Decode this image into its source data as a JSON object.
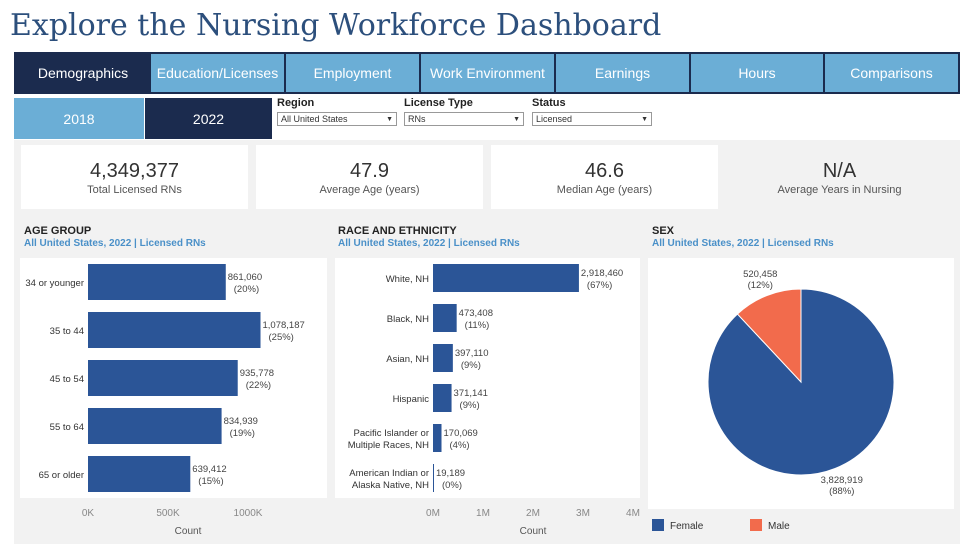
{
  "page": {
    "title": "Explore the Nursing Workforce Dashboard"
  },
  "tabs": [
    {
      "label": "Demographics",
      "active": true
    },
    {
      "label": "Education/Licenses",
      "active": false
    },
    {
      "label": "Employment",
      "active": false
    },
    {
      "label": "Work Environment",
      "active": false
    },
    {
      "label": "Earnings",
      "active": false
    },
    {
      "label": "Hours",
      "active": false
    },
    {
      "label": "Comparisons",
      "active": false
    }
  ],
  "years": [
    {
      "label": "2018",
      "active": false
    },
    {
      "label": "2022",
      "active": true
    }
  ],
  "filters": {
    "region": {
      "label": "Region",
      "value": "All United States"
    },
    "license_type": {
      "label": "License Type",
      "value": "RNs"
    },
    "status": {
      "label": "Status",
      "value": "Licensed"
    }
  },
  "kpis": [
    {
      "value": "4,349,377",
      "label": "Total Licensed RNs"
    },
    {
      "value": "47.9",
      "label": "Average Age (years)"
    },
    {
      "value": "46.6",
      "label": "Median Age (years)"
    },
    {
      "value": "N/A",
      "label": "Average Years in Nursing"
    }
  ],
  "sections": {
    "age": {
      "title": "AGE GROUP",
      "subtitle": "All United States, 2022 | Licensed RNs"
    },
    "race": {
      "title": "RACE AND ETHNICITY",
      "subtitle": "All United States, 2022 | Licensed RNs"
    },
    "sex": {
      "title": "SEX",
      "subtitle": "All United States, 2022 | Licensed RNs"
    }
  },
  "colors": {
    "bar": "#2b5597",
    "female": "#2b5597",
    "male": "#f26b4c",
    "tab_active": "#1b2b4e",
    "tab_inactive": "#6baed6",
    "subtitle": "#4a90c8"
  },
  "chart_data": [
    {
      "type": "bar",
      "orientation": "horizontal",
      "title": "AGE GROUP",
      "subtitle": "All United States, 2022 | Licensed RNs",
      "categories": [
        "34 or younger",
        "35 to 44",
        "45 to 54",
        "55 to 64",
        "65 or older"
      ],
      "values": [
        861060,
        1078187,
        935778,
        834939,
        639412
      ],
      "value_labels": [
        "861,060",
        "1,078,187",
        "935,778",
        "834,939",
        "639,412"
      ],
      "percent_labels": [
        "(20%)",
        "(25%)",
        "(22%)",
        "(19%)",
        "(15%)"
      ],
      "xlabel": "Count",
      "xticks": [
        "0K",
        "500K",
        "1000K"
      ],
      "xtick_values": [
        0,
        500000,
        1000000
      ],
      "xlim": [
        0,
        1250000
      ]
    },
    {
      "type": "bar",
      "orientation": "horizontal",
      "title": "RACE AND ETHNICITY",
      "subtitle": "All United States, 2022 | Licensed RNs",
      "categories": [
        [
          "White, NH"
        ],
        [
          "Black, NH"
        ],
        [
          "Asian, NH"
        ],
        [
          "Hispanic"
        ],
        [
          "Pacific Islander or",
          "Multiple Races, NH"
        ],
        [
          "American Indian or",
          "Alaska Native, NH"
        ]
      ],
      "values": [
        2918460,
        473408,
        397110,
        371141,
        170069,
        19189
      ],
      "value_labels": [
        "2,918,460",
        "473,408",
        "397,110",
        "371,141",
        "170,069",
        "19,189"
      ],
      "percent_labels": [
        "(67%)",
        "(11%)",
        "(9%)",
        "(9%)",
        "(4%)",
        "(0%)"
      ],
      "xlabel": "Count",
      "xticks": [
        "0M",
        "1M",
        "2M",
        "3M",
        "4M"
      ],
      "xtick_values": [
        0,
        1000000,
        2000000,
        3000000,
        4000000
      ],
      "xlim": [
        0,
        4000000
      ]
    },
    {
      "type": "pie",
      "title": "SEX",
      "subtitle": "All United States, 2022 | Licensed RNs",
      "labels": [
        "Female",
        "Male"
      ],
      "values": [
        3828919,
        520458
      ],
      "value_labels": [
        "3,828,919",
        "520,458"
      ],
      "percent_labels": [
        "(88%)",
        "(12%)"
      ],
      "legend_position": "bottom"
    }
  ]
}
